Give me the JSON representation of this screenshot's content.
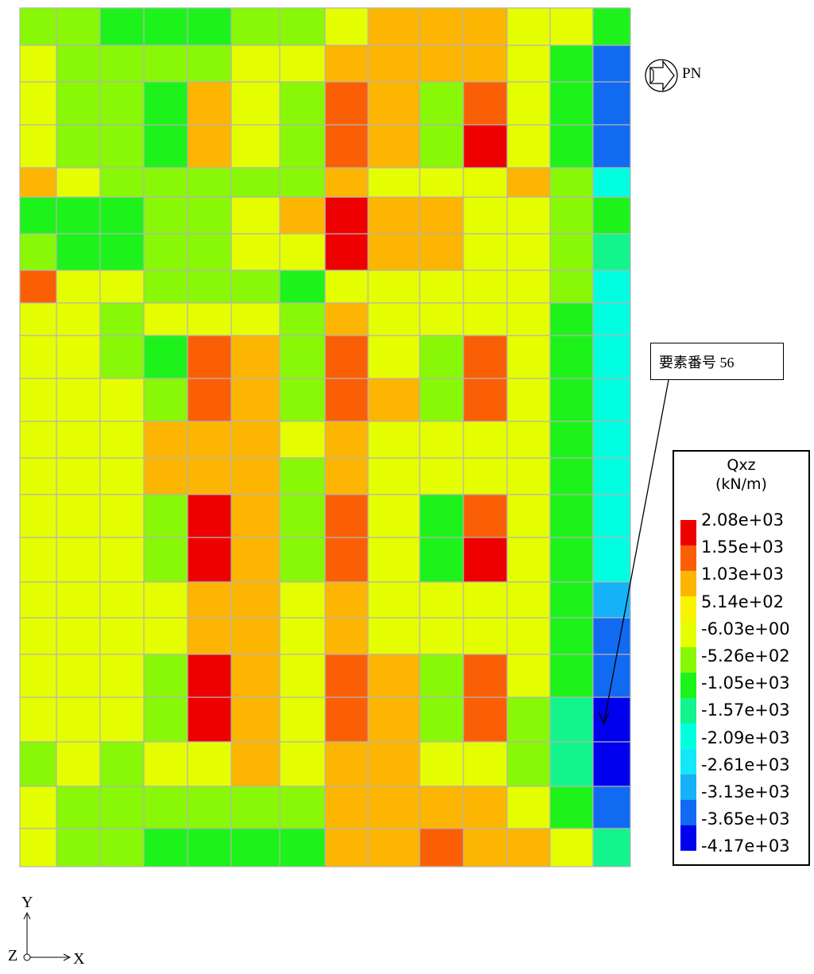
{
  "north_arrow": {
    "label": "PN",
    "icon": "north-arrow-icon"
  },
  "callout": {
    "text": "要素番号 56",
    "target_cell": {
      "row": 18,
      "col": 13
    }
  },
  "legend": {
    "title_line1": "Qxz",
    "title_line2": "(kN/m)",
    "labels": [
      "2.08e+03",
      "1.55e+03",
      "1.03e+03",
      "5.14e+02",
      "-6.03e+00",
      "-5.26e+02",
      "-1.05e+03",
      "-1.57e+03",
      "-2.09e+03",
      "-2.61e+03",
      "-3.13e+03",
      "-3.65e+03",
      "-4.17e+03"
    ],
    "colors": [
      "#ee0000",
      "#fb5f06",
      "#fcb500",
      "#f7f404",
      "#e5ff00",
      "#88f806",
      "#1df31a",
      "#12f48c",
      "#00ffe0",
      "#13e8f8",
      "#15b2f8",
      "#106af2",
      "#0000ee"
    ]
  },
  "axes": {
    "y": "Y",
    "x": "X",
    "z": "Z"
  },
  "chart_data": {
    "type": "heatmap",
    "title": "",
    "value_label": "Qxz (kN/m)",
    "legend_bins": [
      "2.08e+03",
      "1.55e+03",
      "1.03e+03",
      "5.14e+02",
      "-6.03e+00",
      "-5.26e+02",
      "-1.05e+03",
      "-1.57e+03",
      "-2.09e+03",
      "-2.61e+03",
      "-3.13e+03",
      "-3.65e+03",
      "-4.17e+03"
    ],
    "value_encoding": "cell value = index into legend_bins/colors (0 = highest, 12 = lowest)",
    "grid": [
      [
        5,
        5,
        6,
        6,
        6,
        5,
        5,
        4,
        2,
        2,
        2,
        4,
        4,
        6
      ],
      [
        4,
        5,
        5,
        5,
        5,
        4,
        4,
        2,
        2,
        2,
        2,
        4,
        6,
        11
      ],
      [
        4,
        5,
        5,
        6,
        2,
        4,
        5,
        1,
        2,
        5,
        1,
        4,
        6,
        11
      ],
      [
        4,
        5,
        5,
        6,
        2,
        4,
        5,
        1,
        2,
        5,
        0,
        4,
        6,
        11
      ],
      [
        2,
        4,
        5,
        5,
        5,
        5,
        5,
        2,
        4,
        4,
        4,
        2,
        5,
        8
      ],
      [
        6,
        6,
        6,
        5,
        5,
        4,
        2,
        0,
        2,
        2,
        4,
        4,
        5,
        6
      ],
      [
        5,
        6,
        6,
        5,
        5,
        4,
        4,
        0,
        2,
        2,
        4,
        4,
        5,
        7
      ],
      [
        1,
        4,
        4,
        5,
        5,
        5,
        6,
        4,
        4,
        4,
        4,
        4,
        5,
        8
      ],
      [
        4,
        4,
        5,
        4,
        4,
        4,
        5,
        2,
        4,
        4,
        4,
        4,
        6,
        8
      ],
      [
        4,
        4,
        5,
        6,
        1,
        2,
        5,
        1,
        4,
        5,
        1,
        4,
        6,
        8
      ],
      [
        4,
        4,
        4,
        5,
        1,
        2,
        5,
        1,
        2,
        5,
        1,
        4,
        6,
        8
      ],
      [
        4,
        4,
        4,
        2,
        2,
        2,
        4,
        2,
        4,
        4,
        4,
        4,
        6,
        8
      ],
      [
        4,
        4,
        4,
        2,
        2,
        2,
        5,
        2,
        4,
        4,
        4,
        4,
        6,
        8
      ],
      [
        4,
        4,
        4,
        5,
        0,
        2,
        5,
        1,
        4,
        6,
        1,
        4,
        6,
        8
      ],
      [
        4,
        4,
        4,
        5,
        0,
        2,
        5,
        1,
        4,
        6,
        0,
        4,
        6,
        8
      ],
      [
        4,
        4,
        4,
        4,
        2,
        2,
        4,
        2,
        4,
        4,
        4,
        4,
        6,
        10
      ],
      [
        4,
        4,
        4,
        4,
        2,
        2,
        4,
        2,
        4,
        4,
        4,
        4,
        6,
        11
      ],
      [
        4,
        4,
        4,
        5,
        0,
        2,
        4,
        1,
        2,
        5,
        1,
        4,
        6,
        11
      ],
      [
        4,
        4,
        4,
        5,
        0,
        2,
        4,
        1,
        2,
        5,
        1,
        5,
        7,
        12
      ],
      [
        5,
        4,
        5,
        4,
        4,
        2,
        4,
        2,
        2,
        4,
        4,
        5,
        7,
        12
      ],
      [
        4,
        5,
        5,
        5,
        5,
        5,
        5,
        2,
        2,
        2,
        2,
        4,
        6,
        11
      ],
      [
        4,
        5,
        5,
        6,
        6,
        6,
        6,
        2,
        2,
        1,
        2,
        2,
        4,
        7
      ]
    ]
  }
}
